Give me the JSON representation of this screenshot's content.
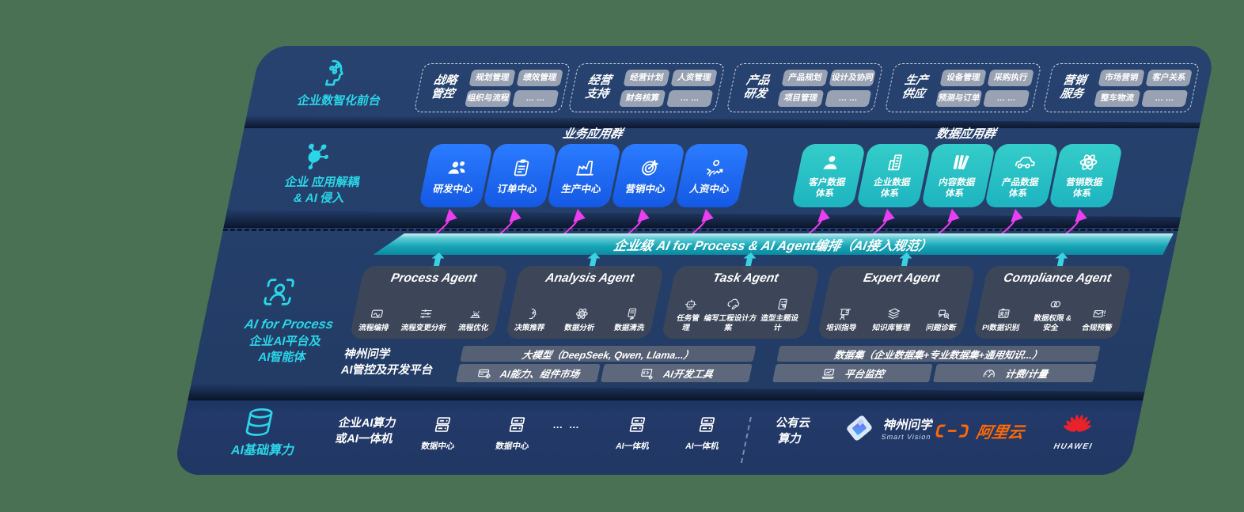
{
  "colors": {
    "plate": "#24406b",
    "accent_cyan": "#2bd5e7",
    "accent_magenta": "#ea3ef0",
    "blue_box": "#1e6ef2",
    "teal_box": "#2cc8c6",
    "banner_teal": "#17a5b7",
    "aliyun_orange": "#ff6a00",
    "huawei_red": "#e7222b"
  },
  "front": {
    "icon": "brain-icon",
    "label": "企业数智化前台",
    "groups": [
      {
        "title": "战略\n管控",
        "chips": [
          "规划管理",
          "绩效管理",
          "组织与流程",
          "… …"
        ]
      },
      {
        "title": "经营\n支持",
        "chips": [
          "经营计划",
          "人资管理",
          "财务核算",
          "… …"
        ]
      },
      {
        "title": "产品\n研发",
        "chips": [
          "产品规划",
          "设计及协同",
          "项目管理",
          "… …"
        ]
      },
      {
        "title": "生产\n供应",
        "chips": [
          "设备管理",
          "采购执行",
          "预测与订单",
          "… …"
        ]
      },
      {
        "title": "营销\n服务",
        "chips": [
          "市场营销",
          "客户关系",
          "整车物流",
          "… …"
        ]
      }
    ]
  },
  "apps": {
    "icon": "molecule-icon",
    "label": "企业 应用解耦\n& AI 侵入",
    "business_title": "业务应用群",
    "business": [
      {
        "label": "研发中心",
        "icon": "people-icon"
      },
      {
        "label": "订单中心",
        "icon": "clipboard-icon"
      },
      {
        "label": "生产中心",
        "icon": "factory-icon"
      },
      {
        "label": "营销中心",
        "icon": "target-icon"
      },
      {
        "label": "人资中心",
        "icon": "person-chart-icon"
      }
    ],
    "data_title": "数据应用群",
    "data": [
      {
        "label": "客户数据\n体系",
        "icon": "user-icon"
      },
      {
        "label": "企业数据\n体系",
        "icon": "building-icon"
      },
      {
        "label": "内容数据\n体系",
        "icon": "books-icon"
      },
      {
        "label": "产品数据\n体系",
        "icon": "car-icon"
      },
      {
        "label": "营销数据\n体系",
        "icon": "atom-icon"
      }
    ]
  },
  "banner": {
    "text": "企业级 AI for Process & AI Agent编排（AI接入规范）"
  },
  "agents": {
    "icon": "scan-person-icon",
    "label_en": "AI for Process",
    "label_cn": "企业AI平台及\nAI智能体",
    "items": [
      {
        "title": "Process Agent",
        "subs": [
          {
            "label": "流程编排",
            "icon": "flow-icon"
          },
          {
            "label": "流程变更分析",
            "icon": "sliders-icon"
          },
          {
            "label": "流程优化",
            "icon": "optimize-icon"
          }
        ]
      },
      {
        "title": "Analysis Agent",
        "subs": [
          {
            "label": "决策推荐",
            "icon": "decision-icon"
          },
          {
            "label": "数据分析",
            "icon": "atom-icon"
          },
          {
            "label": "数据清洗",
            "icon": "clean-icon"
          }
        ]
      },
      {
        "title": "Task Agent",
        "subs": [
          {
            "label": "任务管理",
            "icon": "robot-icon"
          },
          {
            "label": "编写工程设计方案",
            "icon": "cloud-edit-icon"
          },
          {
            "label": "造型主题设计",
            "icon": "theme-icon"
          }
        ]
      },
      {
        "title": "Expert Agent",
        "subs": [
          {
            "label": "培训指导",
            "icon": "training-icon"
          },
          {
            "label": "知识库管理",
            "icon": "layers-icon"
          },
          {
            "label": "问题诊断",
            "icon": "diagnose-icon"
          }
        ]
      },
      {
        "title": "Compliance Agent",
        "subs": [
          {
            "label": "PI数据识别",
            "icon": "idcard-icon"
          },
          {
            "label": "数据权限 &\n安全",
            "icon": "rings-icon"
          },
          {
            "label": "合规预警",
            "icon": "mailalert-icon"
          }
        ]
      }
    ]
  },
  "platform": {
    "label": "神州问学\nAI管控及开发平台",
    "model_header": "大模型（DeepSeek, Qwen, Llama...）",
    "model_cells": [
      {
        "label": "AI能力、组件市场",
        "icon": "cardgear-icon"
      },
      {
        "label": "AI开发工具",
        "icon": "devtool-icon"
      }
    ],
    "data_header": "数据集（企业数据集+专业数据集+通用知识...）",
    "data_cells": [
      {
        "label": "平台监控",
        "icon": "laptop-icon"
      },
      {
        "label": "计费/计量",
        "icon": "gauge-icon"
      }
    ]
  },
  "infra": {
    "icon": "database-icon",
    "label": "AI基础算力",
    "col1": "企业AI算力\n或AI一体机",
    "nodes": [
      {
        "label": "数据中心",
        "icon": "server-icon"
      },
      {
        "label": "数据中心",
        "icon": "server-icon"
      },
      {
        "label": "AI一体机",
        "icon": "server-icon"
      },
      {
        "label": "AI一体机",
        "icon": "server-icon"
      }
    ],
    "dots": "… …",
    "cloud": "公有云\n算力",
    "logos": {
      "sv_cn": "神州问学",
      "sv_en": "Smart Vision",
      "aliyun": "阿里云",
      "huawei": "HUAWEI"
    }
  }
}
